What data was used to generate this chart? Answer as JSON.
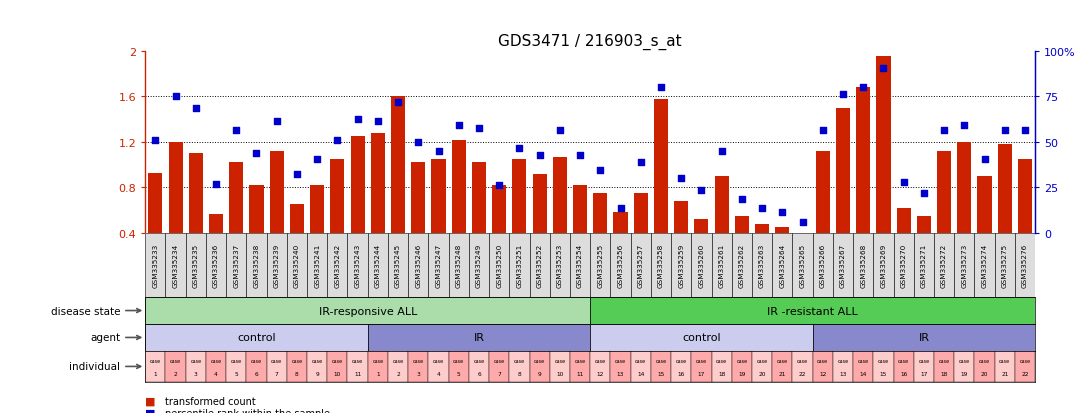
{
  "title": "GDS3471 / 216903_s_at",
  "samples": [
    "GSM335233",
    "GSM335234",
    "GSM335235",
    "GSM335236",
    "GSM335237",
    "GSM335238",
    "GSM335239",
    "GSM335240",
    "GSM335241",
    "GSM335242",
    "GSM335243",
    "GSM335244",
    "GSM335245",
    "GSM335246",
    "GSM335247",
    "GSM335248",
    "GSM335249",
    "GSM335250",
    "GSM335251",
    "GSM335252",
    "GSM335253",
    "GSM335254",
    "GSM335255",
    "GSM335256",
    "GSM335257",
    "GSM335258",
    "GSM335259",
    "GSM335260",
    "GSM335261",
    "GSM335262",
    "GSM335263",
    "GSM335264",
    "GSM335265",
    "GSM335266",
    "GSM335267",
    "GSM335268",
    "GSM335269",
    "GSM335270",
    "GSM335271",
    "GSM335272",
    "GSM335273",
    "GSM335274",
    "GSM335275",
    "GSM335276"
  ],
  "bar_values": [
    0.93,
    1.2,
    1.1,
    0.57,
    1.02,
    0.82,
    1.12,
    0.65,
    0.82,
    1.05,
    1.25,
    1.28,
    1.6,
    1.02,
    1.05,
    1.22,
    1.02,
    0.82,
    1.05,
    0.92,
    1.07,
    0.82,
    0.75,
    0.58,
    0.75,
    1.58,
    0.68,
    0.52,
    0.9,
    0.55,
    0.48,
    0.45,
    0.32,
    1.12,
    1.5,
    1.68,
    1.95,
    0.62,
    0.55,
    1.12,
    1.2,
    0.9,
    1.18,
    1.05
  ],
  "percentile_values": [
    1.22,
    1.6,
    1.5,
    0.83,
    1.3,
    1.1,
    1.38,
    0.92,
    1.05,
    1.22,
    1.4,
    1.38,
    1.55,
    1.2,
    1.12,
    1.35,
    1.32,
    0.82,
    1.15,
    1.08,
    1.3,
    1.08,
    0.95,
    0.62,
    1.02,
    1.68,
    0.88,
    0.78,
    1.12,
    0.7,
    0.62,
    0.58,
    0.5,
    1.3,
    1.62,
    1.68,
    1.85,
    0.85,
    0.75,
    1.3,
    1.35,
    1.05,
    1.3,
    1.3
  ],
  "bar_color": "#cc2200",
  "point_color": "#0000cc",
  "ylim": [
    0.4,
    2.0
  ],
  "yticks": [
    0.4,
    0.8,
    1.2,
    1.6,
    2.0
  ],
  "ytick_labels": [
    "0.4",
    "0.8",
    "1.2",
    "1.6",
    "2"
  ],
  "right_yticks_pct": [
    0,
    25,
    50,
    75,
    100
  ],
  "right_ylabels": [
    "0",
    "25",
    "50",
    "75",
    "100%"
  ],
  "background_color": "#ffffff",
  "disease_state_groups": [
    {
      "label": "IR-responsive ALL",
      "start": 0,
      "end": 21,
      "color": "#aaddaa"
    },
    {
      "label": "IR -resistant ALL",
      "start": 22,
      "end": 43,
      "color": "#55cc55"
    }
  ],
  "agent_groups": [
    {
      "label": "control",
      "start": 0,
      "end": 10,
      "color": "#ccccee"
    },
    {
      "label": "IR",
      "start": 11,
      "end": 21,
      "color": "#8888cc"
    },
    {
      "label": "control",
      "start": 22,
      "end": 32,
      "color": "#ccccee"
    },
    {
      "label": "IR",
      "start": 33,
      "end": 43,
      "color": "#8888cc"
    }
  ],
  "individual_color_light": "#ffcccc",
  "individual_color_dark": "#ffaaaa",
  "row_labels": [
    "disease state",
    "agent",
    "individual"
  ],
  "legend_items": [
    {
      "label": "transformed count",
      "color": "#cc2200"
    },
    {
      "label": "percentile rank within the sample",
      "color": "#0000cc"
    }
  ],
  "title_fontsize": 11,
  "bar_width": 0.7,
  "dot_size": 18,
  "tick_label_bg": "#dddddd"
}
